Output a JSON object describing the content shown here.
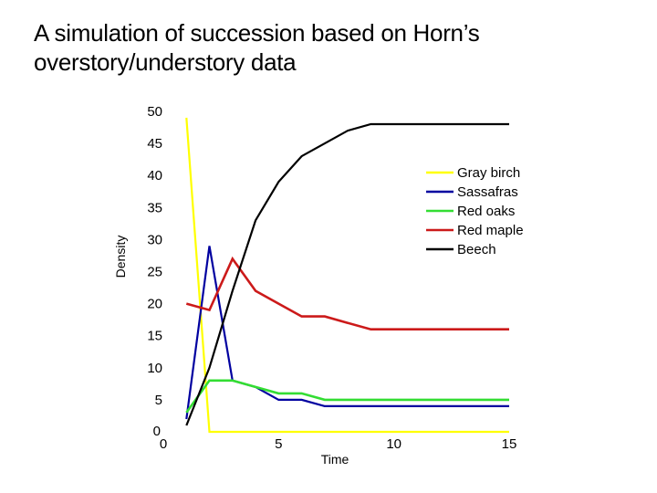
{
  "slide": {
    "title_line1": "A simulation of succession based on Horn’s",
    "title_line2": "overstory/understory data"
  },
  "chart_data": {
    "type": "line",
    "title": "A simulation of succession based on Horn’s overstory/understory data",
    "xlabel": "Time",
    "ylabel": "Density",
    "xlim": [
      0,
      15
    ],
    "ylim": [
      0,
      50
    ],
    "xticks": [
      "0",
      "5",
      "10",
      "15"
    ],
    "yticks": [
      "0",
      "5",
      "10",
      "15",
      "20",
      "25",
      "30",
      "35",
      "40",
      "45",
      "50"
    ],
    "grid": false,
    "legend_position": "upper right",
    "x": [
      1,
      2,
      3,
      4,
      5,
      6,
      7,
      8,
      9,
      10,
      11,
      12,
      13,
      14,
      15
    ],
    "series": [
      {
        "name": "Gray birch",
        "color": "#ffff00",
        "values": [
          49,
          0,
          0,
          0,
          0,
          0,
          0,
          0,
          0,
          0,
          0,
          0,
          0,
          0,
          0
        ]
      },
      {
        "name": "Sassafras",
        "color": "#0000a0",
        "values": [
          2,
          29,
          8,
          7,
          5,
          5,
          4,
          4,
          4,
          4,
          4,
          4,
          4,
          4,
          4
        ]
      },
      {
        "name": "Red oaks",
        "color": "#33dd33",
        "values": [
          3,
          8,
          8,
          7,
          6,
          6,
          5,
          5,
          5,
          5,
          5,
          5,
          5,
          5,
          5
        ]
      },
      {
        "name": "Red maple",
        "color": "#cc1a1a",
        "values": [
          20,
          19,
          27,
          22,
          20,
          18,
          18,
          17,
          16,
          16,
          16,
          16,
          16,
          16,
          16
        ]
      },
      {
        "name": "Beech",
        "color": "#000000",
        "values": [
          1,
          10,
          22,
          33,
          39,
          43,
          45,
          47,
          48,
          48,
          48,
          48,
          48,
          48,
          48
        ]
      }
    ]
  }
}
